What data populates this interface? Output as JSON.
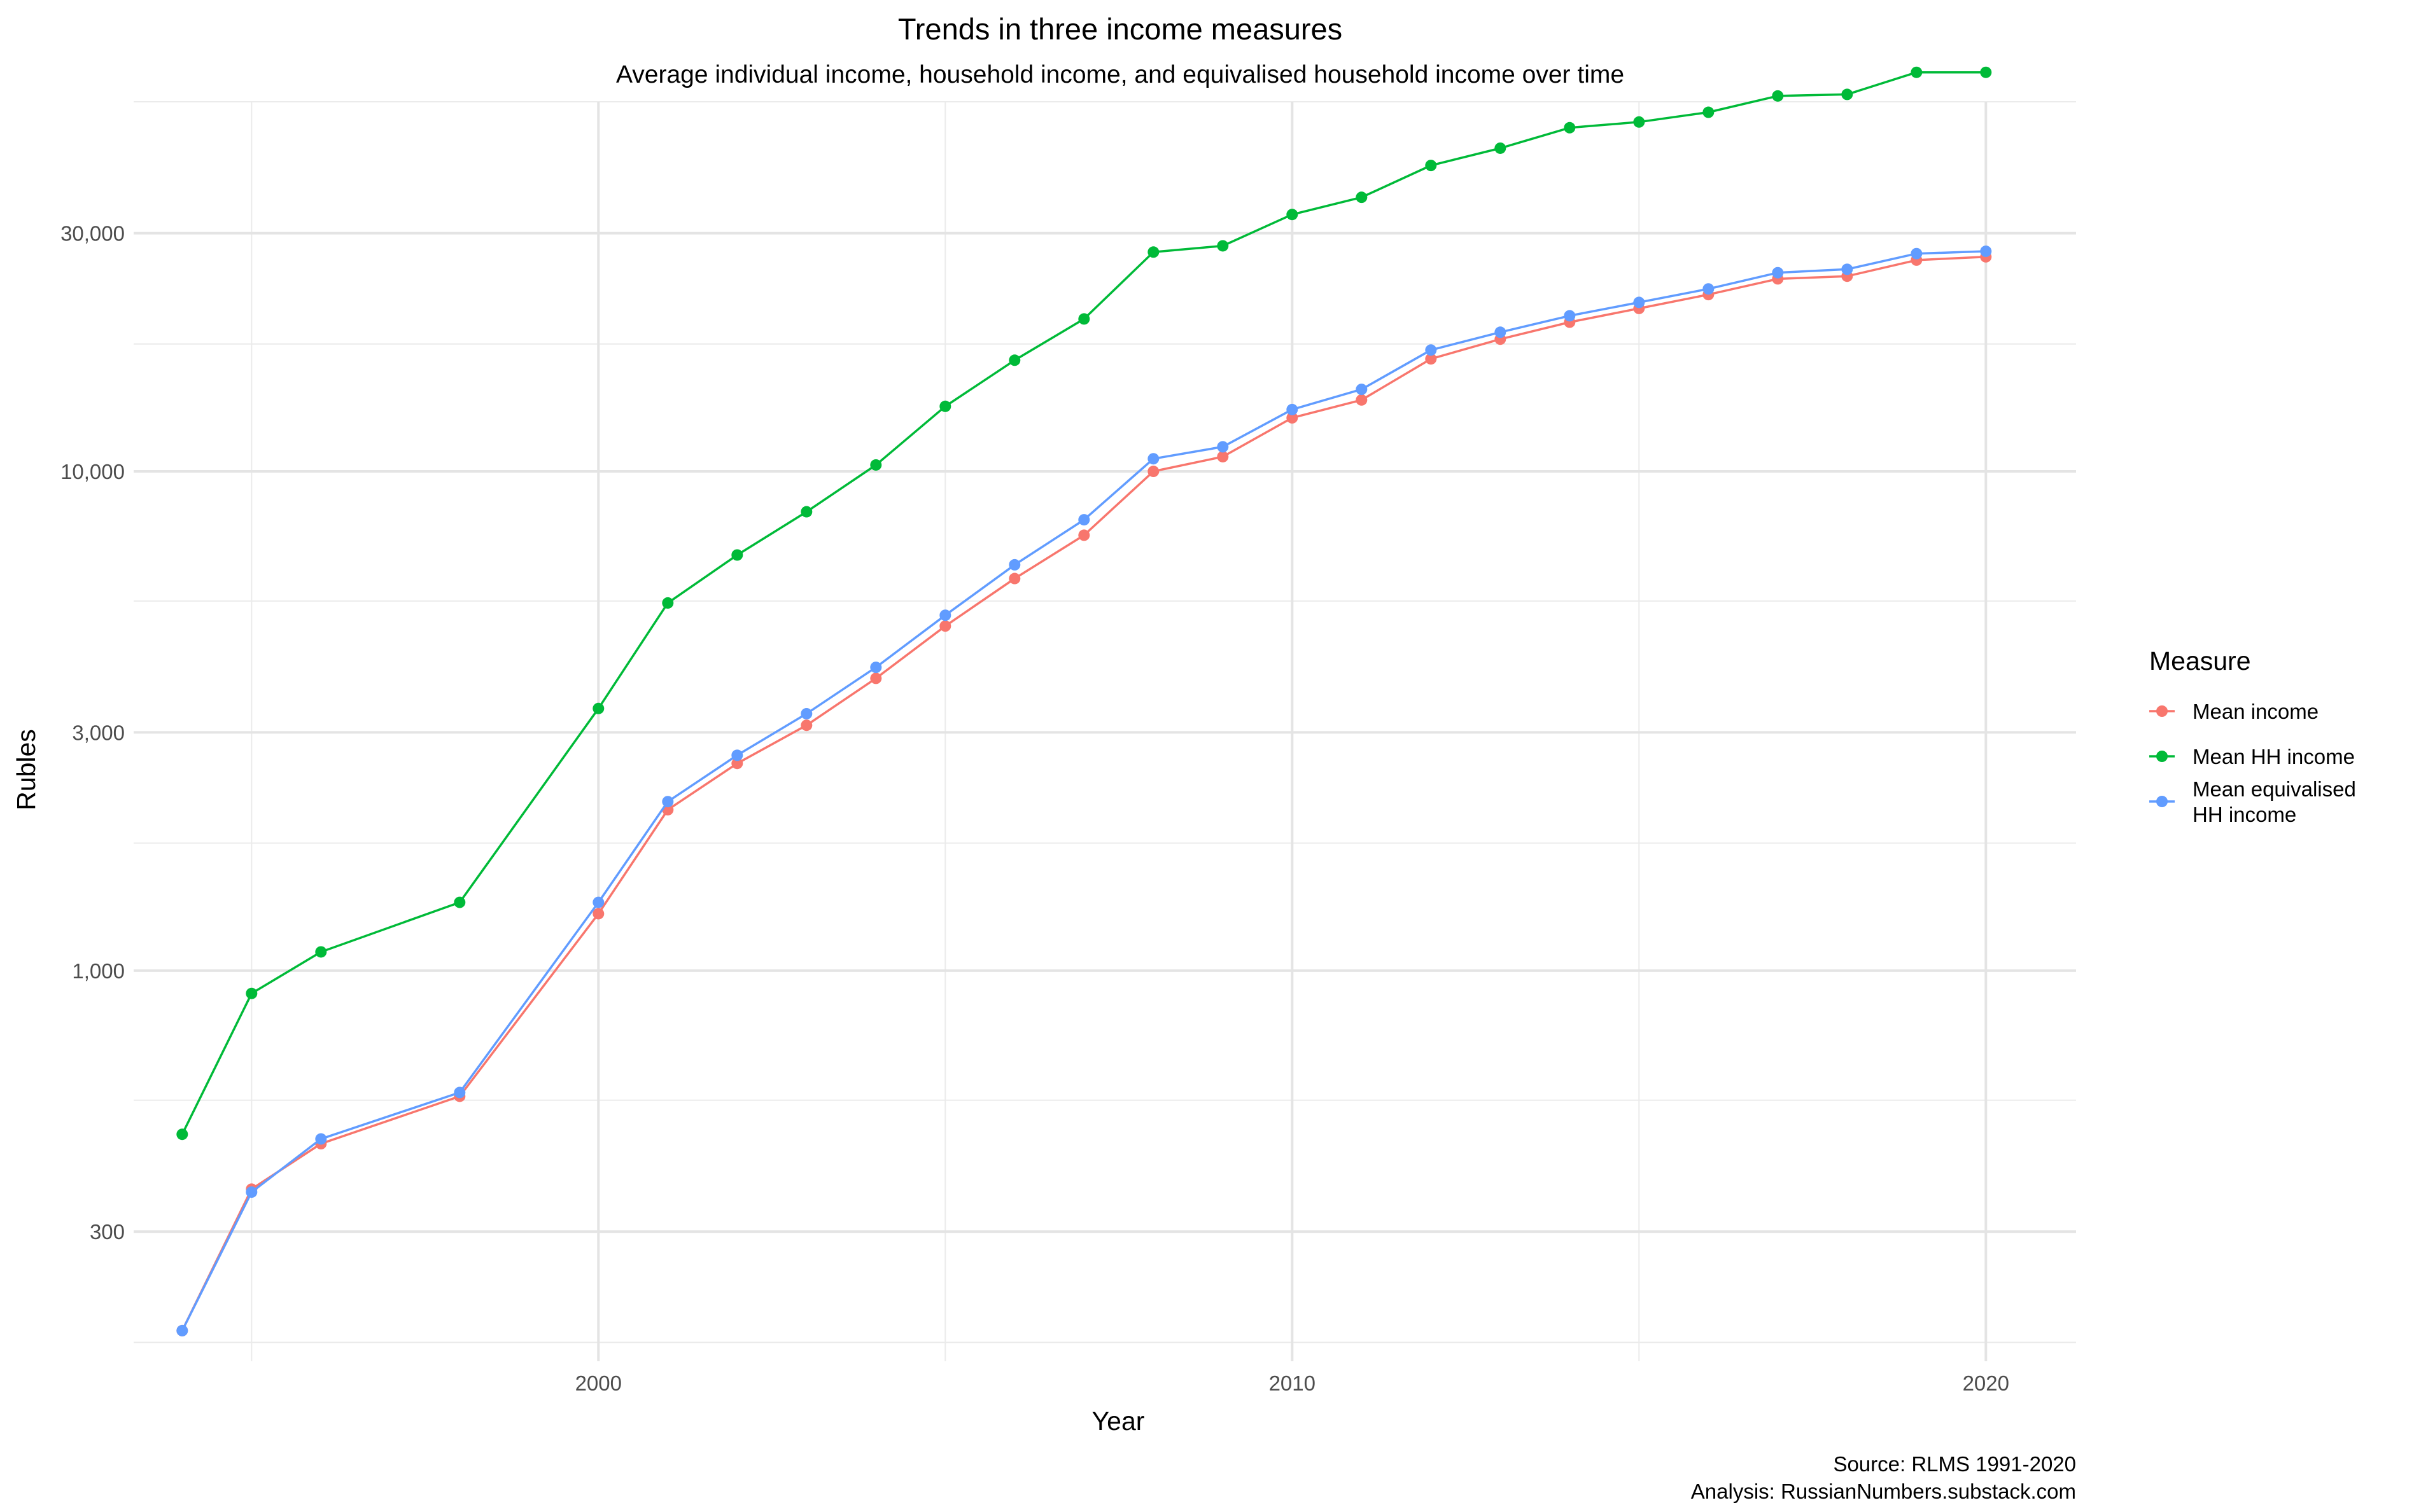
{
  "chart_data": {
    "type": "line",
    "title": "Trends in three income measures",
    "subtitle": "Average individual income, household income, and equivalised household income over time",
    "xlabel": "Year",
    "ylabel": "Rubles",
    "x_scale": "linear",
    "y_scale": "log10",
    "xlim": [
      1993.3,
      2021.3
    ],
    "ylim": [
      165,
      55000
    ],
    "x_ticks": [
      2000,
      2010,
      2020
    ],
    "x_tick_labels": [
      "2000",
      "2010",
      "2020"
    ],
    "x_minor_ticks": [
      1995,
      2005,
      2015
    ],
    "y_ticks": [
      300,
      1000,
      3000,
      10000,
      30000
    ],
    "y_tick_labels": [
      "300",
      "1,000",
      "3,000",
      "10,000",
      "30,000"
    ],
    "y_minor_ticks": [
      180,
      550,
      1800,
      5500,
      18000,
      55000
    ],
    "grid": true,
    "legend": {
      "title": "Measure",
      "placement": "right"
    },
    "series": [
      {
        "name": "Mean income",
        "color": "#F8766D",
        "x": [
          1994,
          1995,
          1996,
          1998,
          2000,
          2001,
          2002,
          2003,
          2004,
          2005,
          2006,
          2007,
          2008,
          2009,
          2010,
          2011,
          2012,
          2013,
          2014,
          2015,
          2016,
          2017,
          2018,
          2019,
          2020
        ],
        "values": [
          190,
          365,
          450,
          560,
          1300,
          2100,
          2600,
          3100,
          3850,
          4900,
          6100,
          7450,
          10000,
          10700,
          12800,
          13900,
          16800,
          18400,
          19900,
          21200,
          22600,
          24300,
          24600,
          26500,
          26900
        ]
      },
      {
        "name": "Mean HH income",
        "color": "#00BA38",
        "x": [
          1994,
          1995,
          1996,
          1998,
          2000,
          2001,
          2002,
          2003,
          2004,
          2005,
          2006,
          2007,
          2008,
          2009,
          2010,
          2011,
          2012,
          2013,
          2014,
          2015,
          2016,
          2017,
          2018,
          2019,
          2020
        ],
        "values": [
          470,
          900,
          1090,
          1370,
          3350,
          5450,
          6800,
          8300,
          10300,
          13500,
          16700,
          20200,
          27500,
          28300,
          32700,
          35400,
          41000,
          44400,
          48800,
          50100,
          52400,
          56500,
          56900,
          63000,
          63000
        ]
      },
      {
        "name": "Mean equivalised\nHH income",
        "color": "#619CFF",
        "x": [
          1994,
          1995,
          1996,
          1998,
          2000,
          2001,
          2002,
          2003,
          2004,
          2005,
          2006,
          2007,
          2008,
          2009,
          2010,
          2011,
          2012,
          2013,
          2014,
          2015,
          2016,
          2017,
          2018,
          2019,
          2020
        ],
        "values": [
          190,
          360,
          460,
          570,
          1370,
          2180,
          2700,
          3270,
          4050,
          5150,
          6500,
          8000,
          10600,
          11200,
          13300,
          14600,
          17500,
          19000,
          20500,
          21800,
          23200,
          25000,
          25400,
          27300,
          27600
        ]
      }
    ]
  },
  "caption": {
    "line1": "Source: RLMS 1991-2020",
    "line2": "Analysis: RussianNumbers.substack.com"
  }
}
